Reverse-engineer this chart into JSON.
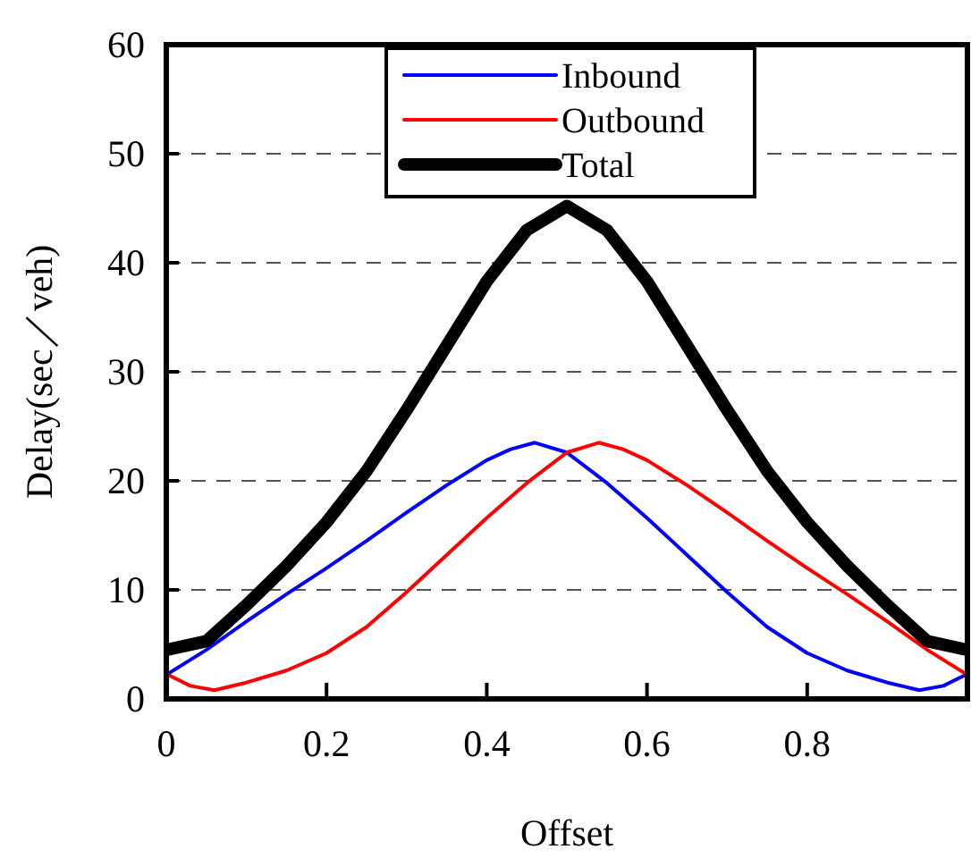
{
  "chart_data": {
    "type": "line",
    "xlabel": "Offset",
    "ylabel": "Delay(sec／veh)",
    "xlim": [
      0,
      1
    ],
    "ylim": [
      0,
      60
    ],
    "xticks": [
      0,
      0.2,
      0.4,
      0.6,
      0.8
    ],
    "yticks": [
      0,
      10,
      20,
      30,
      40,
      50,
      60
    ],
    "grid": "y",
    "legend": "top",
    "series": [
      {
        "name": "Inbound",
        "color": "#0000ff",
        "x": [
          0,
          0.05,
          0.1,
          0.15,
          0.2,
          0.25,
          0.3,
          0.35,
          0.4,
          0.43,
          0.46,
          0.5,
          0.55,
          0.6,
          0.65,
          0.7,
          0.75,
          0.8,
          0.85,
          0.9,
          0.94,
          0.97,
          1.0
        ],
        "values": [
          2.2,
          4.5,
          7.1,
          9.6,
          12.0,
          14.5,
          17.1,
          19.6,
          21.9,
          22.9,
          23.5,
          22.6,
          19.8,
          16.6,
          13.2,
          9.8,
          6.6,
          4.2,
          2.6,
          1.5,
          0.8,
          1.2,
          2.3
        ]
      },
      {
        "name": "Outbound",
        "color": "#ff0000",
        "x": [
          0,
          0.03,
          0.06,
          0.1,
          0.15,
          0.2,
          0.25,
          0.3,
          0.35,
          0.4,
          0.45,
          0.5,
          0.54,
          0.57,
          0.6,
          0.65,
          0.7,
          0.75,
          0.8,
          0.85,
          0.9,
          0.95,
          1.0
        ],
        "values": [
          2.3,
          1.2,
          0.8,
          1.5,
          2.6,
          4.2,
          6.6,
          9.8,
          13.2,
          16.6,
          19.8,
          22.6,
          23.5,
          22.9,
          21.9,
          19.6,
          17.1,
          14.5,
          12.0,
          9.6,
          7.1,
          4.5,
          2.2
        ]
      },
      {
        "name": "Total",
        "color": "#000000",
        "x": [
          0,
          0.05,
          0.1,
          0.15,
          0.2,
          0.25,
          0.3,
          0.35,
          0.4,
          0.45,
          0.5,
          0.55,
          0.6,
          0.65,
          0.7,
          0.75,
          0.8,
          0.85,
          0.9,
          0.95,
          1.0
        ],
        "values": [
          4.5,
          5.3,
          8.6,
          12.2,
          16.2,
          20.9,
          26.5,
          32.4,
          38.3,
          43.0,
          45.2,
          43.0,
          38.3,
          32.4,
          26.5,
          20.9,
          16.2,
          12.2,
          8.6,
          5.3,
          4.5
        ]
      }
    ]
  }
}
